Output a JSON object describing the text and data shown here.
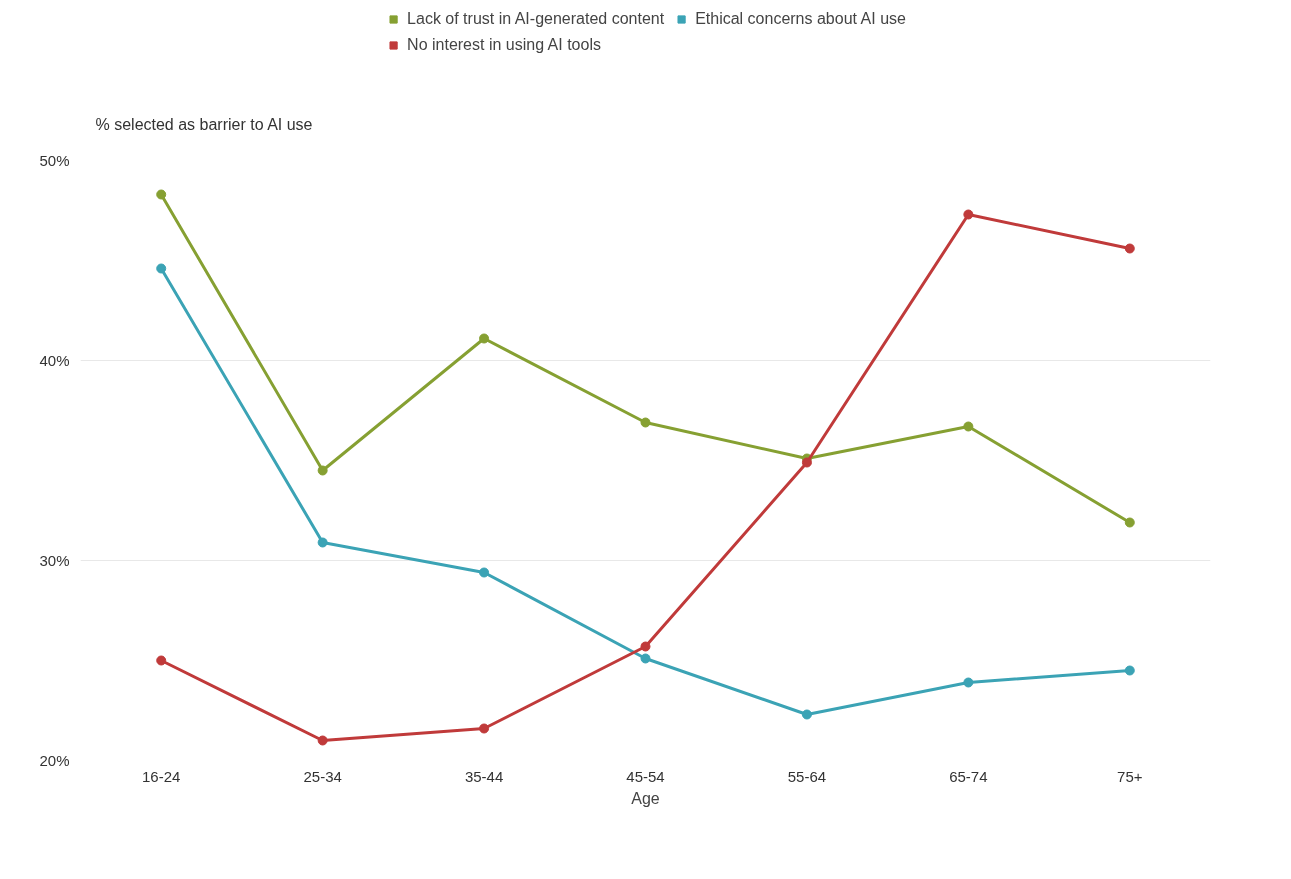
{
  "chart_data": {
    "type": "line",
    "xlabel": "Age",
    "ylabel": "% selected as barrier to AI use",
    "categories": [
      "16-24",
      "25-34",
      "35-44",
      "45-54",
      "55-64",
      "65-74",
      "75+"
    ],
    "series": [
      {
        "name": "Lack of trust in AI-generated content",
        "color": "#86a032",
        "values": [
          48.3,
          34.5,
          41.1,
          36.9,
          35.1,
          36.7,
          31.9
        ]
      },
      {
        "name": "Ethical concerns about AI use",
        "color": "#3ba3b5",
        "values": [
          44.6,
          30.9,
          29.4,
          25.1,
          22.3,
          23.9,
          24.5
        ]
      },
      {
        "name": "No interest in using AI tools",
        "color": "#c03a3a",
        "values": [
          25.0,
          21.0,
          21.6,
          25.7,
          34.9,
          47.3,
          45.6
        ]
      }
    ],
    "ylim": [
      20,
      50
    ],
    "yticks": [
      {
        "value": 20,
        "label": "20%"
      },
      {
        "value": 30,
        "label": "30%"
      },
      {
        "value": 40,
        "label": "40%"
      },
      {
        "value": 50,
        "label": "50%"
      }
    ],
    "grid": "y",
    "legend": "top",
    "marker": "circle",
    "line_style": "solid"
  }
}
